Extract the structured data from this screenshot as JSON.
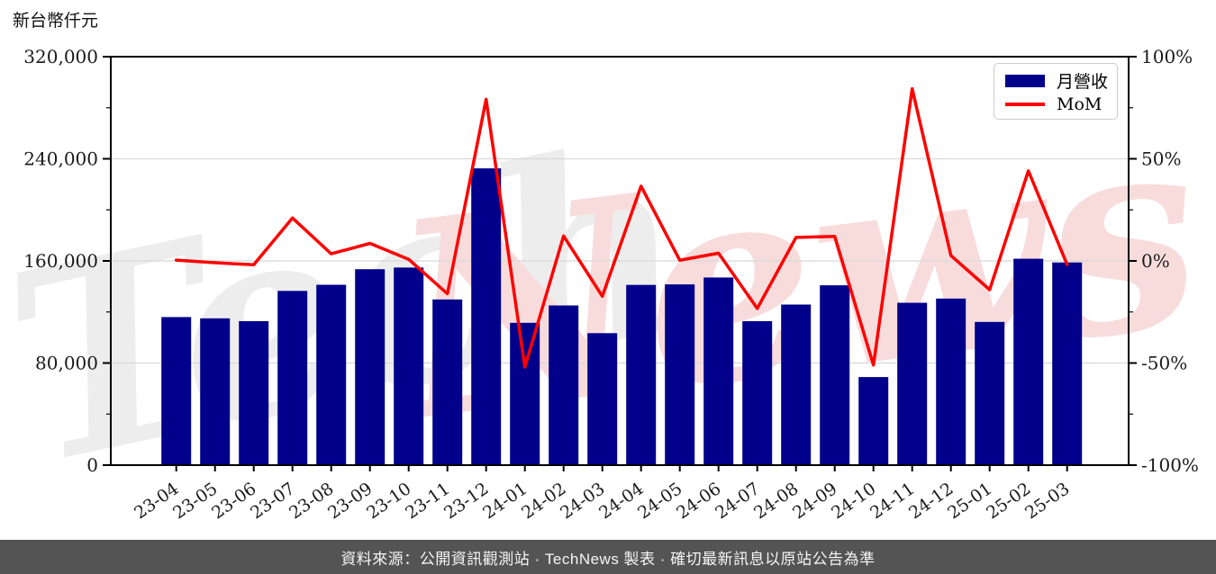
{
  "title": {
    "unit_label": "新台幣仟元"
  },
  "footer": {
    "text": "資料來源：公開資訊觀測站 · TechNews 製表 · 確切最新訊息以原站公告為準"
  },
  "legend": {
    "bar_label": "月營收",
    "line_label": "MoM"
  },
  "watermark": {
    "text_gray": "Tech",
    "text_pink": "News"
  },
  "colors": {
    "bar": "#00008B",
    "line": "#FF0000",
    "grid": "#d8d8d8",
    "axis": "#000000",
    "text": "#1a1a1a",
    "footer_bg": "#545454",
    "footer_text": "#f5f5f5",
    "watermark_gray": "#ededed",
    "watermark_pink": "#f8dcdc"
  },
  "chart_data": {
    "type": "bar+line combo",
    "title": "",
    "categories": [
      "23-04",
      "23-05",
      "23-06",
      "23-07",
      "23-08",
      "23-09",
      "23-10",
      "23-11",
      "23-12",
      "24-01",
      "24-02",
      "24-03",
      "24-04",
      "24-05",
      "24-06",
      "24-07",
      "24-08",
      "24-09",
      "24-10",
      "24-11",
      "24-12",
      "25-01",
      "25-02",
      "25-03"
    ],
    "series": [
      {
        "name": "月營收",
        "type": "bar",
        "axis": "left",
        "unit": "新台幣仟元",
        "values": [
          116000,
          115000,
          112800,
          136500,
          141300,
          153500,
          154800,
          129800,
          232500,
          111500,
          125100,
          103400,
          141200,
          141600,
          147000,
          112800,
          125800,
          140900,
          69000,
          127200,
          130500,
          112200,
          161700,
          158800
        ]
      },
      {
        "name": "MoM",
        "type": "line",
        "axis": "right",
        "unit": "%",
        "values": [
          0.4,
          -0.9,
          -1.9,
          21.0,
          3.5,
          8.6,
          0.8,
          -16.1,
          79.1,
          -52.0,
          12.2,
          -17.3,
          36.6,
          0.3,
          3.8,
          -23.3,
          11.5,
          12.0,
          -51.0,
          84.3,
          2.6,
          -14.1,
          44.1,
          -1.8
        ]
      }
    ],
    "left_axis": {
      "title": "新台幣仟元",
      "range": [
        0,
        320000
      ],
      "major_ticks": [
        0,
        80000,
        160000,
        240000,
        320000
      ],
      "minor_tick_step": 40000
    },
    "right_axis": {
      "range": [
        -100,
        100
      ],
      "major_ticks": [
        -100,
        -50,
        0,
        50,
        100
      ],
      "minor_tick_step": 25,
      "format": "percent"
    },
    "grid": "horizontal",
    "legend_position": "top-right-inside"
  }
}
